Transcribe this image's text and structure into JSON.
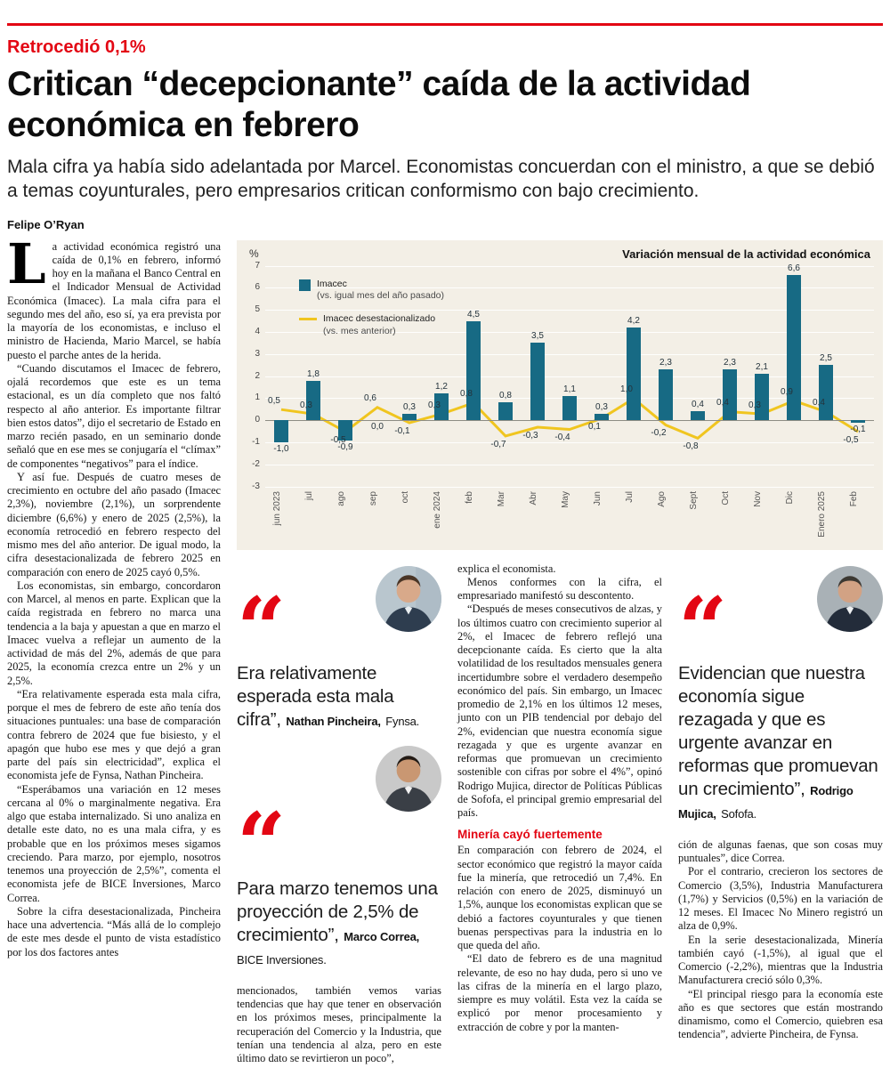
{
  "accent": {
    "red": "#e30613",
    "chart_background": "#f3efe6"
  },
  "header": {
    "kicker": "Retrocedió 0,1%",
    "headline": "Critican “decepcionante” caída de la actividad económica en febrero",
    "deck": "Mala cifra ya había sido adelantada por Marcel. Economistas concuerdan con el ministro, a que se debió a temas coyunturales, pero empresarios critican conformismo con bajo crecimiento.",
    "byline": "Felipe O’Ryan"
  },
  "article": {
    "col1_paragraphs": [
      "La actividad económica registró una caída de 0,1% en febrero, informó hoy en la mañana el Banco Central en el Indicador Mensual de Actividad Económica (Imacec). La mala cifra para el segundo mes del año, eso sí, ya era prevista por la mayoría de los economistas, e incluso el ministro de Hacienda, Mario Marcel, se había puesto el parche antes de la herida.",
      "“Cuando discutamos el Imacec de febrero, ojalá recordemos que este es un tema estacional, es un día completo que nos faltó respecto al año anterior. Es importante filtrar bien estos datos”, dijo el secretario de Estado en marzo recién pasado, en un seminario donde señaló que en ese mes se conjugaría el “clímax” de componentes “negativos” para el índice.",
      "Y así fue. Después de cuatro meses de crecimiento en octubre del año pasado (Imacec 2,3%), noviembre (2,1%), un sorprendente diciembre (6,6%) y enero de 2025 (2,5%), la economía retrocedió en febrero respecto del mismo mes del año anterior. De igual modo, la cifra desestacionalizada de febrero 2025 en comparación con enero de 2025 cayó 0,5%.",
      "Los economistas, sin embargo, concordaron con Marcel, al menos en parte. Explican que la caída registrada en febrero no marca una tendencia a la baja y apuestan a que en marzo el Imacec vuelva a reflejar un aumento de la actividad de más del 2%, además de que para 2025, la economía crezca entre un 2% y un 2,5%.",
      "“Era relativamente esperada esta mala cifra, porque el mes de febrero de este año tenía dos situaciones puntuales: una base de comparación contra febrero de 2024 que fue bisiesto, y el apagón que hubo ese mes y que dejó a gran parte del país sin electricidad”, explica el economista jefe de Fynsa, Nathan Pincheira.",
      "“Esperábamos una variación en 12 meses cercana al 0% o marginalmente negativa. Era algo que estaba internalizado. Si uno analiza en detalle este dato, no es una mala cifra, y es probable que en los próximos meses sigamos creciendo. Para marzo, por ejemplo, nosotros tenemos una proyección de 2,5%”, comenta el economista jefe de BICE Inversiones, Marco Correa.",
      "Sobre la cifra desestacionalizada, Pincheira hace una advertencia. “Más allá de lo complejo de este mes desde el punto de vista estadístico por los dos factores antes"
    ],
    "col2_paragraphs": [
      "mencionados, también vemos varias tendencias que hay que tener en observación en los próximos meses, principalmente la recuperación del Comercio y la Industria, que tenían una tendencia al alza, pero en este último dato se revirtieron un poco”,"
    ],
    "col3_paragraphs_1": [
      "explica el economista.",
      "Menos conformes con la cifra, el empresariado manifestó su descontento.",
      "“Después de meses consecutivos de alzas, y los últimos cuatro con crecimiento superior al 2%, el Imacec de febrero reflejó una decepcionante caída. Es cierto que la alta volatilidad de los resultados mensuales genera incertidumbre sobre el verdadero desempeño económico del país. Sin embargo, un Imacec promedio de 2,1% en los últimos 12 meses, junto con un PIB tendencial por debajo del 2%, evidencian que nuestra economía sigue rezagada y que es urgente avanzar en reformas que promuevan un crecimiento sostenible con cifras por sobre el 4%”, opinó Rodrigo Mujica, director de Políticas Públicas de Sofofa, el principal gremio empresarial del país."
    ],
    "col3_subhead": "Minería cayó fuertemente",
    "col3_paragraphs_2": [
      "En comparación con febrero de 2024, el sector económico que registró la mayor caída fue la minería, que retrocedió un 7,4%. En relación con enero de 2025, disminuyó un 1,5%, aunque los economistas explican que se debió a factores coyunturales y que tienen buenas perspectivas para la industria en lo que queda del año.",
      "“El dato de febrero es de una magnitud relevante, de eso no hay duda, pero si uno ve las cifras de la minería en el largo plazo, siempre es muy volátil. Esta vez la caída se explicó por menor procesamiento y extracción de cobre y por la manten-"
    ],
    "col4_paragraphs": [
      "ción de algunas faenas, que son cosas muy puntuales”, dice Correa.",
      "Por el contrario, crecieron los sectores de Comercio (3,5%), Industria Manufacturera (1,7%) y Servicios (0,5%) en la variación de 12 meses. El Imacec No Minero registró un alza de 0,9%.",
      "En la serie desestacionalizada, Minería también cayó (-1,5%), al igual que el Comercio (-2,2%), mientras que la Industria Manufacturera creció sólo 0,3%.",
      "“El principal riesgo para la economía este año es que sectores que están mostrando dinamismo, como el Comercio, quiebren esa tendencia”, advierte Pincheira, de Fynsa."
    ]
  },
  "quotes": [
    {
      "mark": "“",
      "text": "Era relativamente esperada esta mala cifra”,",
      "name": "Nathan Pincheira,",
      "org": "Fynsa."
    },
    {
      "mark": "“",
      "text": "Para marzo tenemos una proyección de 2,5% de crecimiento”,",
      "name": "Marco Correa,",
      "org": "BICE Inversiones."
    },
    {
      "mark": "“",
      "text": "Evidencian que nuestra economía sigue rezagada y que es urgente avanzar en reformas que promuevan un crecimiento”,",
      "name": "Rodrigo Mujica,",
      "org": "Sofofa."
    }
  ],
  "chart_data": {
    "type": "bar",
    "title": "Variación mensual de la actividad económica",
    "y_unit": "%",
    "ylim": [
      -3,
      7
    ],
    "yticks": [
      7,
      6,
      5,
      4,
      3,
      2,
      1,
      0,
      -1,
      -2,
      -3
    ],
    "grid": true,
    "legend_position": "upper-left",
    "categories": [
      "jun 2023",
      "jul",
      "ago",
      "sep",
      "oct",
      "ene 2024",
      "feb",
      "Mar",
      "Abr",
      "May",
      "Jun",
      "Jul",
      "Ago",
      "Sept",
      "Oct",
      "Nov",
      "Dic",
      "Enero 2025",
      "Feb"
    ],
    "legend": [
      {
        "label": "Imacec",
        "sublabel": "(vs. igual mes del año pasado)"
      },
      {
        "label": "Imacec desestacionalizado",
        "sublabel": "(vs. mes anterior)"
      }
    ],
    "series": [
      {
        "name": "Imacec (vs. igual mes del año pasado)",
        "type": "bar",
        "color": "#176a84",
        "values": [
          -1.0,
          1.8,
          -0.9,
          0.0,
          0.3,
          1.2,
          4.5,
          0.8,
          3.5,
          1.1,
          0.3,
          4.2,
          2.3,
          0.4,
          2.3,
          2.1,
          6.6,
          2.5,
          -0.1
        ]
      },
      {
        "name": "Imacec desestacionalizado (vs. mes anterior)",
        "type": "line",
        "color": "#f0c51f",
        "values": [
          0.5,
          0.3,
          -0.5,
          0.6,
          -0.1,
          0.3,
          0.8,
          -0.7,
          -0.3,
          -0.4,
          0.1,
          1.0,
          -0.2,
          -0.8,
          0.4,
          0.3,
          0.9,
          0.4,
          -0.5
        ]
      }
    ]
  }
}
